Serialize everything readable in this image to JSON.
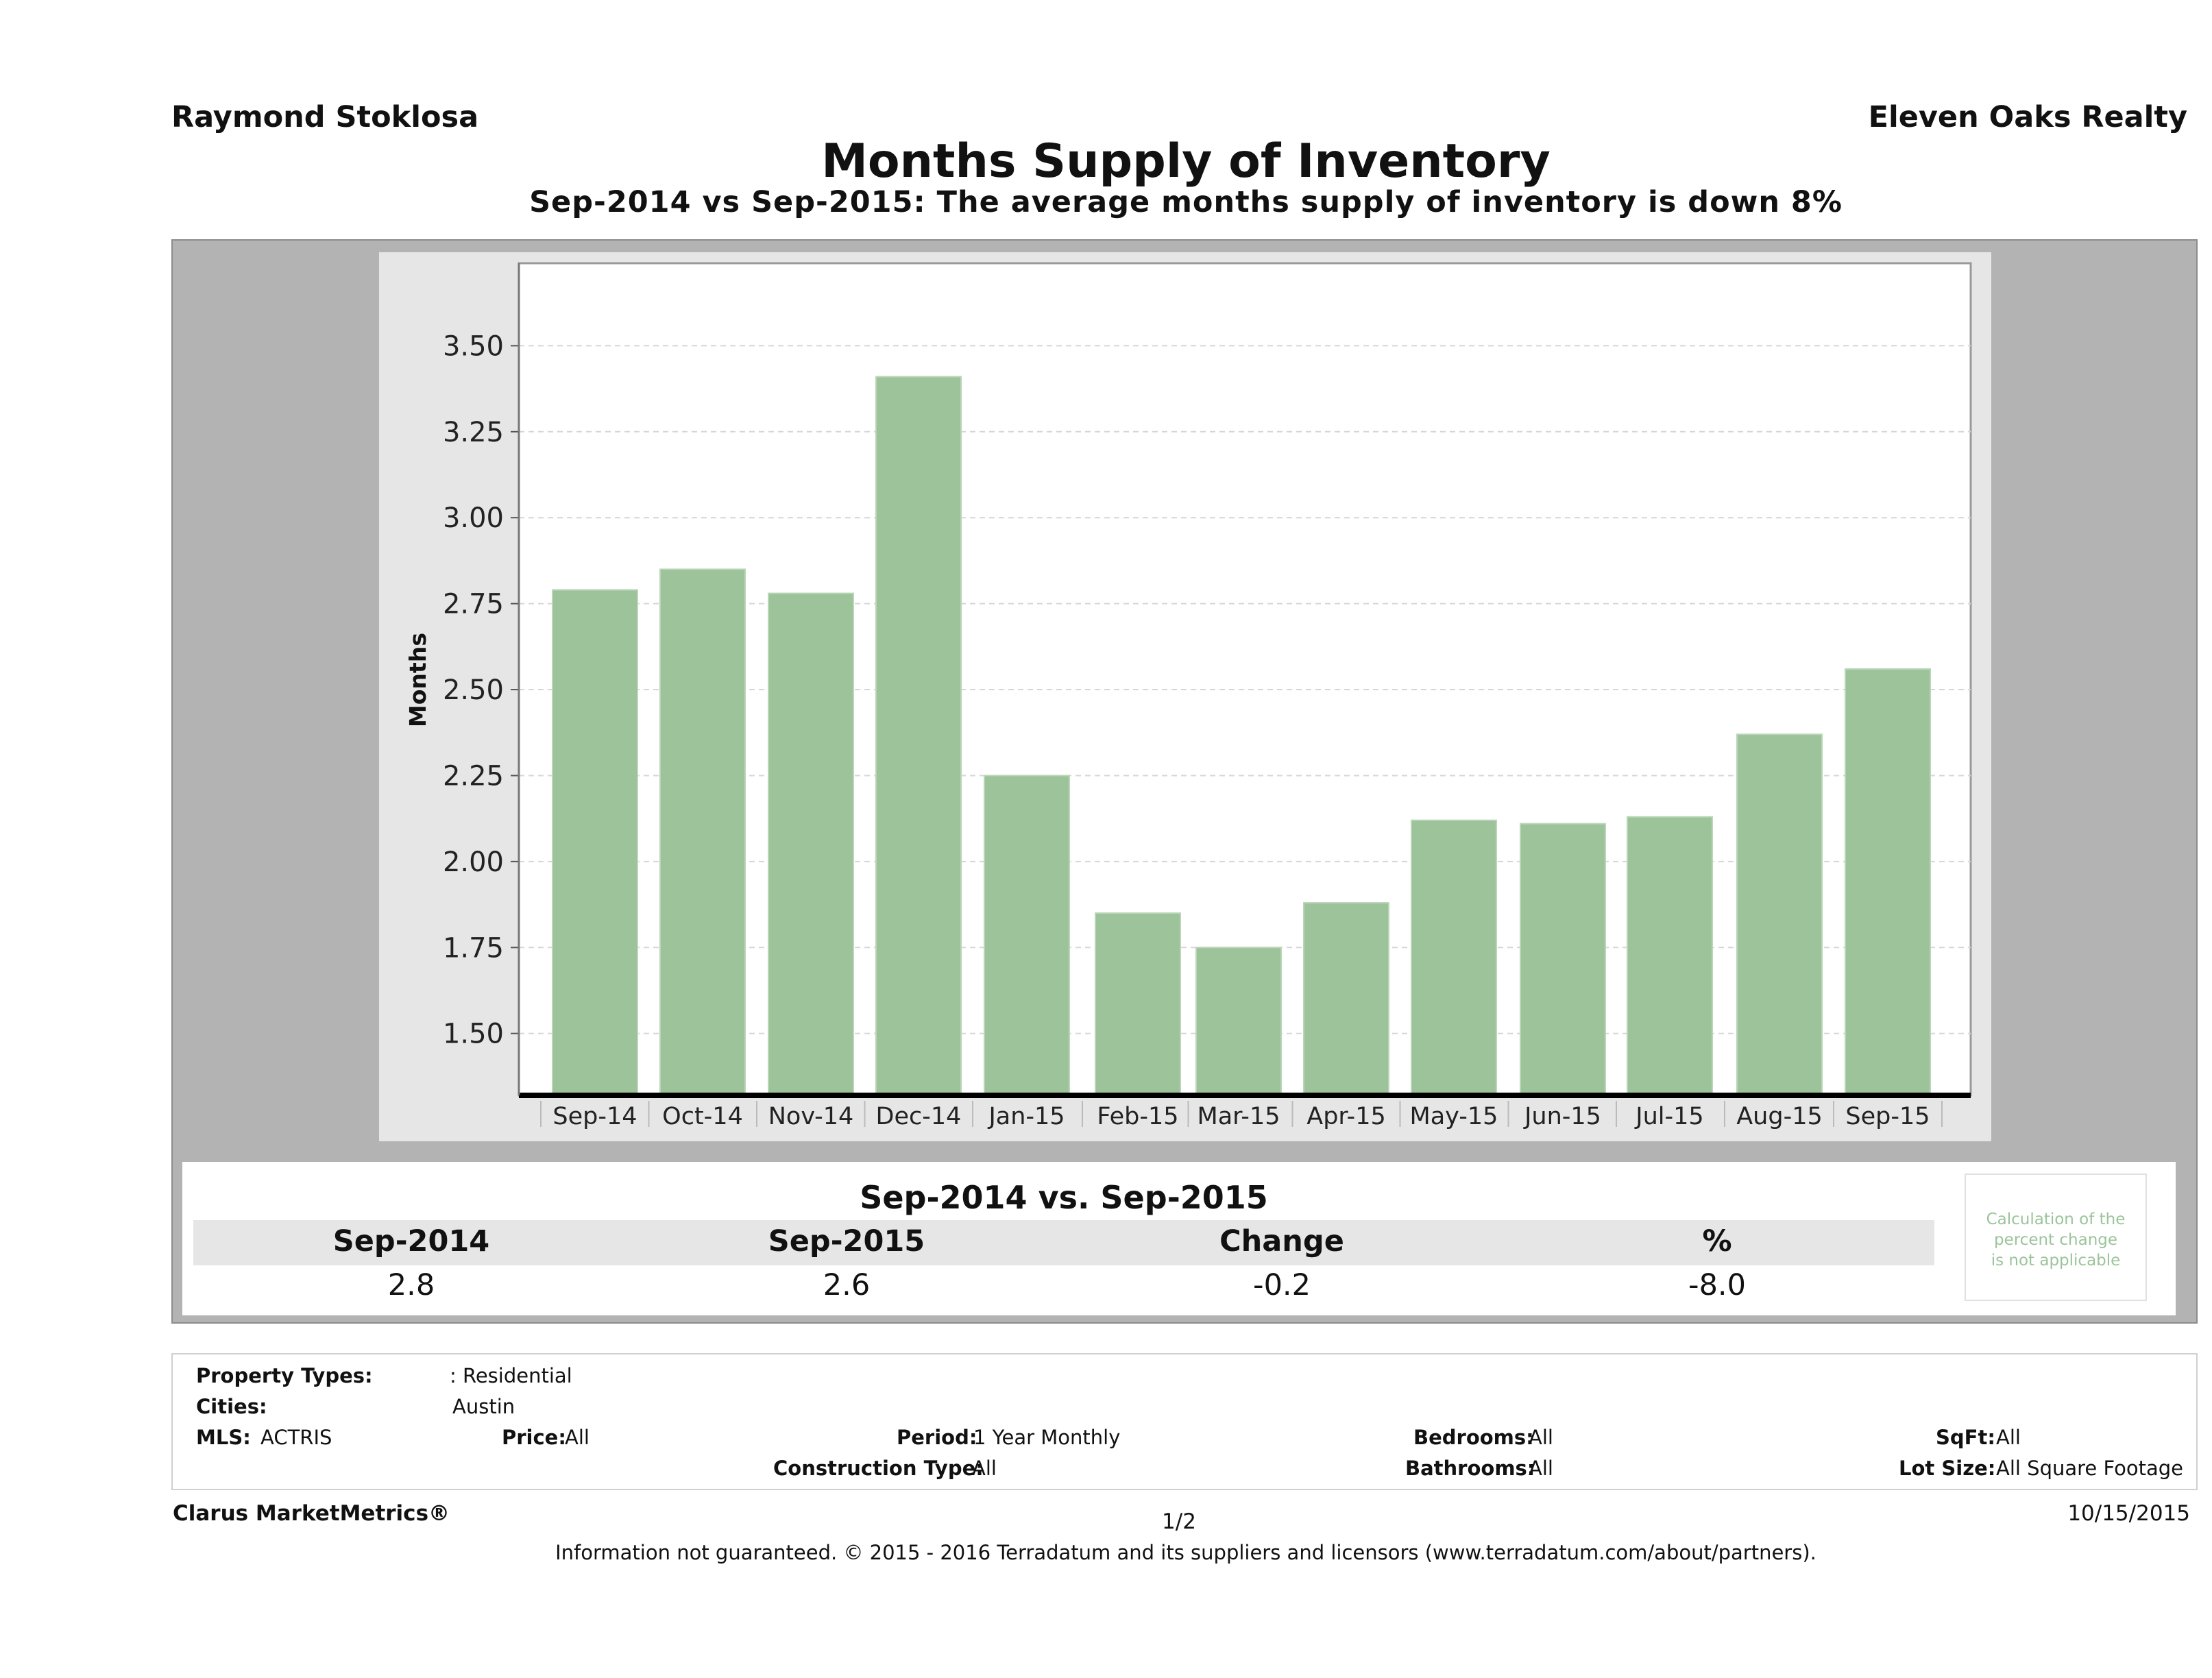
{
  "header": {
    "agent": "Raymond Stoklosa",
    "company": "Eleven Oaks Realty",
    "title": "Months Supply of Inventory",
    "subtitle": "Sep-2014 vs Sep-2015: The average months supply of inventory is down 8%"
  },
  "chart_data": {
    "type": "bar",
    "categories": [
      "Sep-14",
      "Oct-14",
      "Nov-14",
      "Dec-14",
      "Jan-15",
      "Feb-15",
      "Mar-15",
      "Apr-15",
      "May-15",
      "Jun-15",
      "Jul-15",
      "Aug-15",
      "Sep-15"
    ],
    "values": [
      2.79,
      2.85,
      2.78,
      3.41,
      2.25,
      1.85,
      1.75,
      1.88,
      2.12,
      2.11,
      2.13,
      2.37,
      2.56
    ],
    "ylabel": "Months",
    "xlabel": "",
    "ylim": [
      1.32,
      3.74
    ],
    "yticks": [
      "1.50",
      "1.75",
      "2.00",
      "2.25",
      "2.50",
      "2.75",
      "3.00",
      "3.25",
      "3.50"
    ],
    "grid": true,
    "bar_color": "#9dc39b"
  },
  "comparison": {
    "title": "Sep-2014 vs. Sep-2015",
    "headers": [
      "Sep-2014",
      "Sep-2015",
      "Change",
      "%"
    ],
    "values": [
      "2.8",
      "2.6",
      "-0.2",
      "-8.0"
    ],
    "note": [
      "Calculation of the",
      "percent change",
      "is not applicable"
    ]
  },
  "criteria": {
    "property_types_label": "Property Types:",
    "property_types_value": ": Residential",
    "cities_label": "Cities:",
    "cities_value": "Austin",
    "mls_label": "MLS:",
    "mls_value": "ACTRIS",
    "price_label": "Price:",
    "price_value": "All",
    "period_label": "Period:",
    "period_value": "1 Year Monthly",
    "construction_label": "Construction Type:",
    "construction_value": "All",
    "bedrooms_label": "Bedrooms:",
    "bedrooms_value": "All",
    "bathrooms_label": "Bathrooms:",
    "bathrooms_value": "All",
    "sqft_label": "SqFt:",
    "sqft_value": "All",
    "lot_label": "Lot Size:",
    "lot_value": "All Square Footage"
  },
  "footer": {
    "brand": "Clarus MarketMetrics®",
    "page": "1/2",
    "date": "10/15/2015",
    "disclaimer": "Information not guaranteed. © 2015 - 2016 Terradatum and its suppliers and licensors (www.terradatum.com/about/partners)."
  }
}
